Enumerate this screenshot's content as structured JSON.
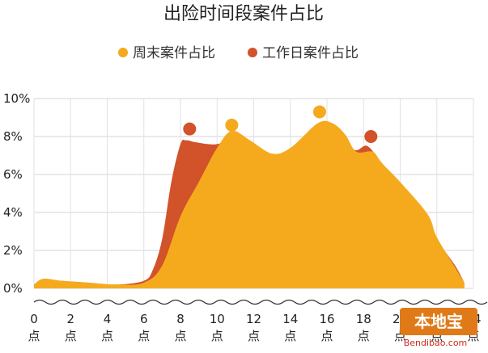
{
  "chart_data": {
    "type": "area",
    "title": "出险时间段案件占比",
    "xlabel": "",
    "ylabel": "",
    "xlim": [
      0,
      24
    ],
    "ylim": [
      0,
      10
    ],
    "y_ticks": [
      0,
      2,
      4,
      6,
      8,
      10
    ],
    "y_tick_labels": [
      "0%",
      "2%",
      "4%",
      "6%",
      "8%",
      "10%"
    ],
    "x_ticks": [
      0,
      2,
      4,
      6,
      8,
      10,
      12,
      14,
      16,
      18,
      20,
      22,
      24
    ],
    "x_tick_labels": [
      "0",
      "2",
      "4",
      "6",
      "8",
      "10",
      "12",
      "14",
      "16",
      "18",
      "20",
      "22",
      "24"
    ],
    "x_tick_suffix": "点",
    "grid": true,
    "legend_position": "top",
    "series": [
      {
        "name": "周末案件占比",
        "color": "#F5AA1E",
        "x": [
          0,
          0.5,
          1.5,
          3,
          4.5,
          6,
          7,
          8,
          9,
          10,
          10.8,
          11.8,
          13,
          14,
          15.5,
          16.3,
          17,
          17.6,
          18.5,
          19,
          20,
          21.5,
          22,
          23,
          23.5
        ],
        "values": [
          0.2,
          0.5,
          0.4,
          0.3,
          0.2,
          0.3,
          1.2,
          3.8,
          5.6,
          7.4,
          8.3,
          7.8,
          7.1,
          7.4,
          8.7,
          8.7,
          8.1,
          7.2,
          7.2,
          6.6,
          5.6,
          3.9,
          2.7,
          1.1,
          0.3
        ]
      },
      {
        "name": "工作日案件占比",
        "color": "#D2522A",
        "x": [
          0,
          0.5,
          1.5,
          3,
          4.5,
          6,
          6.5,
          7,
          7.5,
          8,
          8.3,
          8.8,
          9.5,
          10,
          11,
          12,
          14,
          15.5,
          16.5,
          17.5,
          18.2,
          19,
          20,
          21.5,
          22,
          23,
          23.5
        ],
        "values": [
          0.2,
          0.5,
          0.4,
          0.3,
          0.2,
          0.4,
          1.0,
          2.6,
          5.6,
          7.6,
          7.8,
          7.7,
          7.6,
          7.6,
          7.8,
          7.2,
          6.7,
          8.1,
          8.3,
          7.3,
          7.5,
          6.6,
          5.5,
          3.8,
          2.6,
          1.2,
          0.3
        ]
      }
    ],
    "peak_markers": [
      {
        "series": "工作日案件占比",
        "x": 8.5,
        "value": 8.4
      },
      {
        "series": "周末案件占比",
        "x": 10.8,
        "value": 8.6
      },
      {
        "series": "周末案件占比",
        "x": 15.6,
        "value": 9.3
      },
      {
        "series": "工作日案件占比",
        "x": 18.4,
        "value": 8.0
      }
    ]
  },
  "watermark": {
    "logo_text": "本地宝",
    "url": "Bendibao.com"
  }
}
